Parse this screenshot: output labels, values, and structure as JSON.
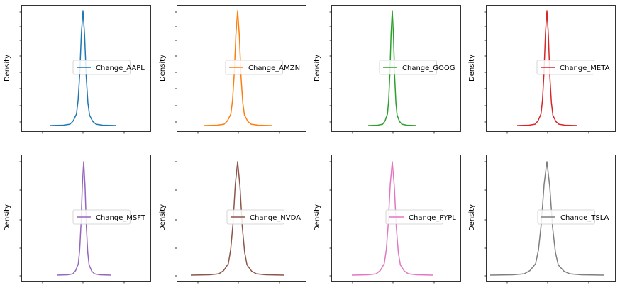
{
  "chart_data": [
    {
      "type": "line",
      "ylabel": "Density",
      "series": [
        {
          "name": "Change_AAPL",
          "color": "#1f77b4",
          "x": [
            -1.0,
            -0.6,
            -0.4,
            -0.3,
            -0.2,
            -0.15,
            -0.1,
            -0.05,
            0.0,
            0.05,
            0.1,
            0.15,
            0.2,
            0.3,
            0.4,
            0.6,
            1.0
          ],
          "y": [
            0.0,
            0.003,
            0.012,
            0.04,
            0.1,
            0.22,
            0.45,
            0.8,
            1.0,
            0.78,
            0.42,
            0.2,
            0.09,
            0.035,
            0.012,
            0.003,
            0.0
          ]
        }
      ]
    },
    {
      "type": "line",
      "ylabel": "Density",
      "series": [
        {
          "name": "Change_AMZN",
          "color": "#ff7f0e",
          "x": [
            -1.0,
            -0.6,
            -0.4,
            -0.3,
            -0.2,
            -0.15,
            -0.1,
            -0.05,
            0.0,
            0.05,
            0.1,
            0.15,
            0.2,
            0.3,
            0.4,
            0.6,
            1.0
          ],
          "y": [
            0.0,
            0.003,
            0.012,
            0.04,
            0.1,
            0.22,
            0.45,
            0.8,
            1.0,
            0.78,
            0.42,
            0.2,
            0.09,
            0.035,
            0.012,
            0.003,
            0.0
          ]
        }
      ]
    },
    {
      "type": "line",
      "ylabel": "Density",
      "series": [
        {
          "name": "Change_GOOG",
          "color": "#2ca02c",
          "x": [
            -1.0,
            -0.6,
            -0.4,
            -0.3,
            -0.2,
            -0.15,
            -0.1,
            -0.05,
            0.0,
            0.05,
            0.1,
            0.15,
            0.2,
            0.3,
            0.4,
            0.6,
            1.0
          ],
          "y": [
            0.0,
            0.003,
            0.012,
            0.04,
            0.1,
            0.22,
            0.45,
            0.8,
            1.0,
            0.78,
            0.42,
            0.2,
            0.09,
            0.035,
            0.012,
            0.003,
            0.0
          ]
        }
      ]
    },
    {
      "type": "line",
      "ylabel": "Density",
      "series": [
        {
          "name": "Change_META",
          "color": "#d62728",
          "x": [
            -1.0,
            -0.6,
            -0.4,
            -0.3,
            -0.2,
            -0.15,
            -0.1,
            -0.05,
            0.0,
            0.05,
            0.1,
            0.15,
            0.2,
            0.3,
            0.4,
            0.6,
            1.0
          ],
          "y": [
            0.0,
            0.003,
            0.012,
            0.04,
            0.1,
            0.22,
            0.45,
            0.8,
            1.0,
            0.78,
            0.42,
            0.2,
            0.09,
            0.035,
            0.012,
            0.003,
            0.0
          ]
        }
      ]
    },
    {
      "type": "line",
      "ylabel": "Density",
      "series": [
        {
          "name": "Change_MSFT",
          "color": "#9467bd",
          "x": [
            -1.0,
            -0.6,
            -0.4,
            -0.3,
            -0.2,
            -0.15,
            -0.1,
            -0.05,
            0.0,
            0.05,
            0.1,
            0.15,
            0.2,
            0.3,
            0.4,
            0.6,
            1.0
          ],
          "y": [
            0.0,
            0.003,
            0.012,
            0.04,
            0.1,
            0.22,
            0.45,
            0.8,
            1.0,
            0.78,
            0.42,
            0.2,
            0.09,
            0.035,
            0.012,
            0.003,
            0.0
          ]
        }
      ]
    },
    {
      "type": "line",
      "ylabel": "Density",
      "series": [
        {
          "name": "Change_NVDA",
          "color": "#8c564b",
          "x": [
            -1.0,
            -0.6,
            -0.4,
            -0.3,
            -0.2,
            -0.15,
            -0.1,
            -0.05,
            0.0,
            0.05,
            0.1,
            0.15,
            0.2,
            0.3,
            0.4,
            0.6,
            1.0
          ],
          "y": [
            0.0,
            0.003,
            0.012,
            0.04,
            0.1,
            0.22,
            0.45,
            0.8,
            1.0,
            0.78,
            0.42,
            0.2,
            0.09,
            0.035,
            0.012,
            0.003,
            0.0
          ]
        }
      ]
    },
    {
      "type": "line",
      "ylabel": "Density",
      "series": [
        {
          "name": "Change_PYPL",
          "color": "#e377c2",
          "x": [
            -1.0,
            -0.6,
            -0.4,
            -0.3,
            -0.2,
            -0.15,
            -0.1,
            -0.05,
            0.0,
            0.05,
            0.1,
            0.15,
            0.2,
            0.3,
            0.4,
            0.6,
            1.0
          ],
          "y": [
            0.0,
            0.003,
            0.012,
            0.04,
            0.1,
            0.22,
            0.45,
            0.8,
            1.0,
            0.78,
            0.42,
            0.2,
            0.09,
            0.035,
            0.012,
            0.003,
            0.0
          ]
        }
      ]
    },
    {
      "type": "line",
      "ylabel": "Density",
      "series": [
        {
          "name": "Change_TSLA",
          "color": "#7f7f7f",
          "x": [
            -1.0,
            -0.6,
            -0.4,
            -0.3,
            -0.2,
            -0.15,
            -0.1,
            -0.05,
            0.0,
            0.05,
            0.1,
            0.15,
            0.2,
            0.3,
            0.4,
            0.6,
            1.0
          ],
          "y": [
            0.0,
            0.003,
            0.012,
            0.04,
            0.1,
            0.22,
            0.45,
            0.8,
            1.0,
            0.78,
            0.42,
            0.2,
            0.09,
            0.035,
            0.012,
            0.003,
            0.0
          ]
        }
      ]
    }
  ]
}
